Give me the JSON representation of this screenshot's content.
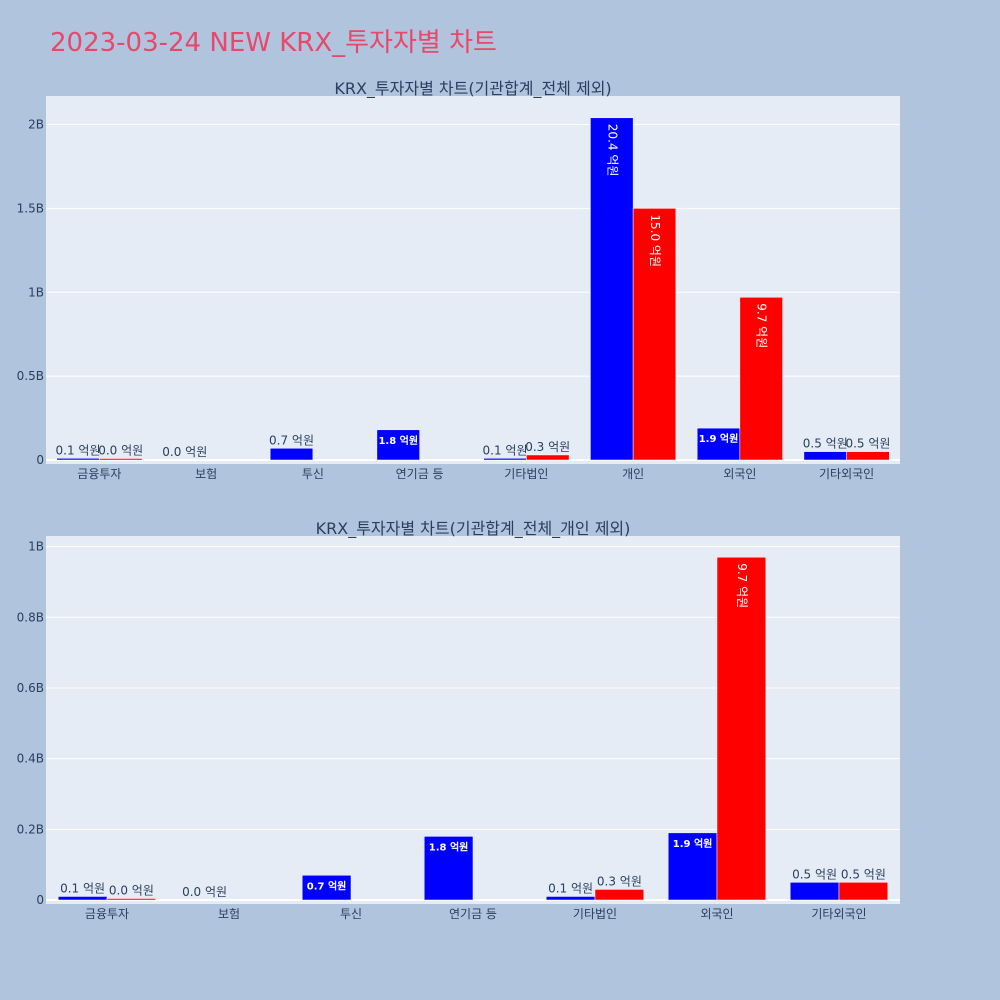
{
  "page_title": "2023-03-24 NEW KRX_투자자별 차트",
  "colors": {
    "series_a": "#0000ff",
    "series_b": "#ff0000",
    "plot_bg": "#e5ecf6",
    "page_bg": "#b0c4de",
    "title": "#e8486a"
  },
  "chart_data": [
    {
      "type": "bar",
      "title": "KRX_투자자별 차트(기관합계_전체 제외)",
      "categories": [
        "금융투자",
        "보험",
        "투신",
        "연기금 등",
        "기타법인",
        "개인",
        "외국인",
        "기타외국인"
      ],
      "series": [
        {
          "values": [
            10000000,
            0,
            70000000,
            180000000,
            10000000,
            2040000000,
            190000000,
            50000000
          ],
          "labels": [
            "0.1 억원",
            "0.0 억원",
            "0.7 억원",
            "1.8 억원",
            "0.1 억원",
            "20.4 억원",
            "1.9 억원",
            "0.5 억원"
          ]
        },
        {
          "values": [
            2000000,
            null,
            null,
            null,
            30000000,
            1500000000,
            970000000,
            50000000
          ],
          "labels": [
            "0.0 억원",
            "",
            "",
            "",
            "0.3 억원",
            "15.0 억원",
            "9.7 억원",
            "0.5 억원"
          ]
        }
      ],
      "ylim": [
        0,
        2170000000
      ],
      "yticks": [
        0,
        500000000,
        1000000000,
        1500000000,
        2000000000
      ],
      "ytick_labels": [
        "0",
        "0.5B",
        "1B",
        "1.5B",
        "2B"
      ],
      "grid": true
    },
    {
      "type": "bar",
      "title": "KRX_투자자별 차트(기관합계_전체_개인 제외)",
      "categories": [
        "금융투자",
        "보험",
        "투신",
        "연기금 등",
        "기타법인",
        "외국인",
        "기타외국인"
      ],
      "series": [
        {
          "values": [
            10000000,
            0,
            70000000,
            180000000,
            10000000,
            190000000,
            50000000
          ],
          "labels": [
            "0.1 억원",
            "0.0 억원",
            "0.7 억원",
            "1.8 억원",
            "0.1 억원",
            "1.9 억원",
            "0.5 억원"
          ]
        },
        {
          "values": [
            2000000,
            null,
            null,
            null,
            30000000,
            970000000,
            50000000
          ],
          "labels": [
            "0.0 억원",
            "",
            "",
            "",
            "0.3 억원",
            "9.7 억원",
            "0.5 억원"
          ]
        }
      ],
      "ylim": [
        0,
        1030000000
      ],
      "yticks": [
        0,
        200000000,
        400000000,
        600000000,
        800000000,
        1000000000
      ],
      "ytick_labels": [
        "0",
        "0.2B",
        "0.4B",
        "0.6B",
        "0.8B",
        "1B"
      ],
      "grid": true
    }
  ]
}
